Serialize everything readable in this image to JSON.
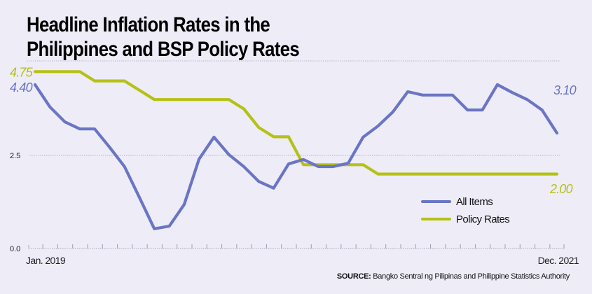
{
  "chart_data": {
    "type": "line",
    "title": "Headline Inflation Rates in the Philippines and BSP Policy Rates",
    "xlabel": "",
    "ylabel": "",
    "x_start_label": "Jan. 2019",
    "x_end_label": "Dec. 2021",
    "x": [
      "Jan 2019",
      "Feb 2019",
      "Mar 2019",
      "Apr 2019",
      "May 2019",
      "Jun 2019",
      "Jul 2019",
      "Aug 2019",
      "Sep 2019",
      "Oct 2019",
      "Nov 2019",
      "Dec 2019",
      "Jan 2020",
      "Feb 2020",
      "Mar 2020",
      "Apr 2020",
      "May 2020",
      "Jun 2020",
      "Jul 2020",
      "Aug 2020",
      "Sep 2020",
      "Oct 2020",
      "Nov 2020",
      "Dec 2020",
      "Jan 2021",
      "Feb 2021",
      "Mar 2021",
      "Apr 2021",
      "May 2021",
      "Jun 2021",
      "Jul 2021",
      "Aug 2021",
      "Sep 2021",
      "Oct 2021",
      "Nov 2021",
      "Dec 2021"
    ],
    "ylim": [
      0,
      5
    ],
    "yticks": [
      {
        "value": 0,
        "label": "0.0"
      },
      {
        "value": 2.5,
        "label": "2.5"
      }
    ],
    "grid": true,
    "legend_position": "bottom-right",
    "series": [
      {
        "name": "All Items",
        "color": "#6a75c4",
        "end_label": "3.10",
        "start_label": "4.40",
        "values": [
          4.4,
          3.8,
          3.4,
          3.21,
          3.21,
          2.72,
          2.2,
          1.37,
          0.53,
          0.6,
          1.18,
          2.4,
          2.99,
          2.52,
          2.2,
          1.8,
          1.62,
          2.27,
          2.39,
          2.2,
          2.2,
          2.29,
          2.99,
          3.29,
          3.67,
          4.21,
          4.12,
          4.12,
          4.12,
          3.72,
          3.72,
          4.4,
          4.19,
          4.0,
          3.72,
          3.1
        ]
      },
      {
        "name": "Policy Rates",
        "color": "#b5c116",
        "end_label": "2.00",
        "start_label": "4.75",
        "values": [
          4.75,
          4.75,
          4.75,
          4.75,
          4.5,
          4.5,
          4.5,
          4.25,
          4.0,
          4.0,
          4.0,
          4.0,
          4.0,
          4.0,
          3.75,
          3.25,
          3.0,
          3.0,
          2.25,
          2.25,
          2.25,
          2.25,
          2.25,
          2.0,
          2.0,
          2.0,
          2.0,
          2.0,
          2.0,
          2.0,
          2.0,
          2.0,
          2.0,
          2.0,
          2.0,
          2.0
        ]
      }
    ]
  },
  "source": {
    "label": "SOURCE:",
    "text": " Bangko Sentral ng Pilipinas and Philippine Statistics Authority"
  }
}
